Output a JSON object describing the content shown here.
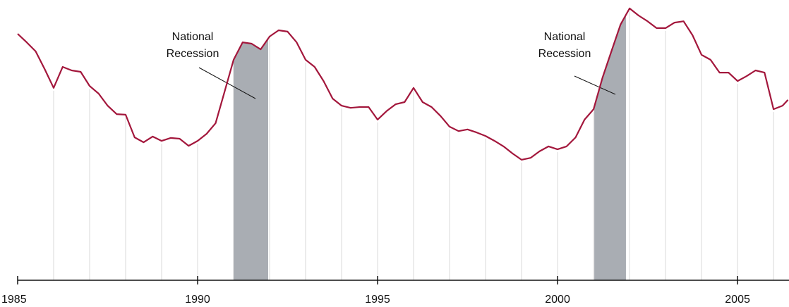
{
  "chart_data": {
    "type": "line",
    "x": [
      1985,
      1985.25,
      1985.5,
      1985.75,
      1986,
      1986.25,
      1986.5,
      1986.75,
      1987,
      1987.25,
      1987.5,
      1987.75,
      1988,
      1988.25,
      1988.5,
      1988.75,
      1989,
      1989.25,
      1989.5,
      1989.75,
      1990,
      1990.25,
      1990.5,
      1990.75,
      1991,
      1991.25,
      1991.5,
      1991.75,
      1992,
      1992.25,
      1992.5,
      1992.75,
      1993,
      1993.25,
      1993.5,
      1993.75,
      1994,
      1994.25,
      1994.5,
      1994.75,
      1995,
      1995.25,
      1995.5,
      1995.75,
      1996,
      1996.25,
      1996.5,
      1996.75,
      1997,
      1997.25,
      1997.5,
      1997.75,
      1998,
      1998.25,
      1998.5,
      1998.75,
      1999,
      1999.25,
      1999.5,
      1999.75,
      2000,
      2000.25,
      2000.5,
      2000.75,
      2001,
      2001.25,
      2001.5,
      2001.75,
      2002,
      2002.25,
      2002.5,
      2002.75,
      2003,
      2003.25,
      2003.5,
      2003.75,
      2004,
      2004.25,
      2004.5,
      2004.75,
      2005,
      2005.25,
      2005.5,
      2005.75,
      2006,
      2006.25,
      2006.4
    ],
    "series": [
      {
        "color": "#a3173c",
        "values": [
          90.2,
          87.1,
          83.8,
          77.3,
          70.4,
          78.1,
          76.8,
          76.3,
          71.1,
          68.3,
          63.9,
          60.8,
          60.6,
          52.3,
          50.5,
          52.6,
          51.0,
          52.1,
          51.8,
          49.2,
          51.0,
          53.6,
          57.5,
          69.1,
          80.7,
          87.1,
          86.6,
          84.5,
          89.2,
          91.5,
          91.0,
          87.1,
          80.7,
          78.1,
          72.9,
          66.5,
          63.9,
          63.1,
          63.4,
          63.4,
          58.8,
          61.9,
          64.4,
          65.2,
          70.4,
          65.2,
          63.4,
          60.1,
          56.2,
          54.6,
          55.2,
          54.1,
          52.8,
          51.0,
          49.0,
          46.4,
          44.1,
          44.8,
          47.2,
          49.0,
          47.9,
          49.0,
          52.3,
          58.8,
          62.6,
          74.2,
          84.0,
          93.6,
          99.5,
          96.9,
          94.8,
          92.3,
          92.3,
          94.3,
          94.8,
          89.7,
          82.5,
          80.7,
          76.0,
          76.0,
          72.9,
          74.7,
          76.8,
          76.0,
          62.6,
          63.9,
          66.0
        ]
      }
    ],
    "xlim": [
      1985,
      2006.43
    ],
    "ylim": [
      0,
      100
    ],
    "xticks": [
      1985,
      1990,
      1995,
      2000,
      2005
    ],
    "xgrid": [
      1986,
      1987,
      1988,
      1989,
      1990,
      1991,
      1992,
      1993,
      1994,
      1995,
      1996,
      1997,
      1998,
      1999,
      2000,
      2001,
      2002,
      2003,
      2004,
      2005,
      2006
    ],
    "recessions": [
      {
        "start": 1991.0,
        "end": 1991.96,
        "label_lines": [
          "National",
          "Recession"
        ]
      },
      {
        "start": 2001.02,
        "end": 2001.9,
        "label_lines": [
          "National",
          "Recession"
        ]
      }
    ]
  }
}
